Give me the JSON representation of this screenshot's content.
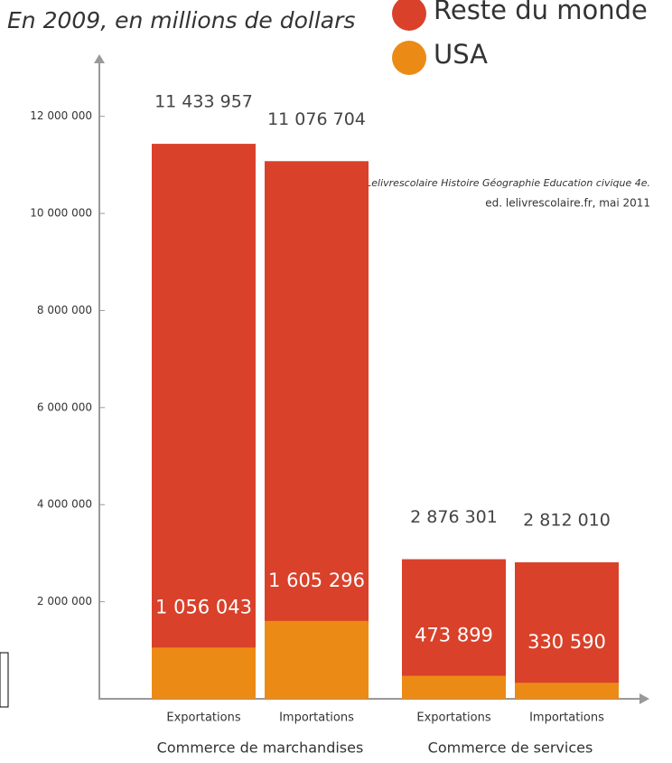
{
  "chart_data": {
    "type": "bar",
    "overlay": true,
    "title": "En 2009, en millions de dollars",
    "source": [
      "Manuel Lelivrescolaire Histoire Géographie Education civique 4e.",
      "ed. lelivrescolaire.fr, mai 2011"
    ],
    "categories": [
      "Exportations",
      "Importations",
      "Exportations",
      "Importations"
    ],
    "groups": [
      "Commerce de marchandises",
      "Commerce de services"
    ],
    "series": [
      {
        "name": "Reste du monde",
        "color": "#d9412a",
        "values": [
          11433957,
          11076704,
          2876301,
          2812010
        ],
        "value_labels": [
          "11 433 957",
          "11 076 704",
          "2 876 301",
          "2 812 010"
        ]
      },
      {
        "name": "USA",
        "color": "#ec8a16",
        "values": [
          1056043,
          1605296,
          473899,
          330590
        ],
        "value_labels": [
          "1 056 043",
          "1 605 296",
          "473 899",
          "330 590"
        ]
      }
    ],
    "ylim": [
      0,
      13000000
    ],
    "yticks": [
      {
        "value": 2000000,
        "label": "2 000 000"
      },
      {
        "value": 4000000,
        "label": "4 000 000"
      },
      {
        "value": 6000000,
        "label": "6 000 000"
      },
      {
        "value": 8000000,
        "label": "8 000 000"
      },
      {
        "value": 10000000,
        "label": "10 000 000"
      },
      {
        "value": 12000000,
        "label": "12 000 000"
      }
    ]
  }
}
